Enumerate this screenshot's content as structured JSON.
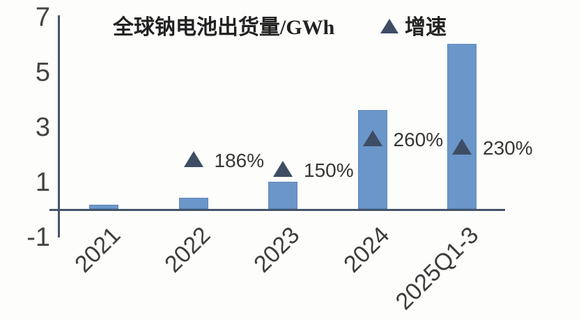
{
  "legend": {
    "items": [
      {
        "label": "全球钠电池出货量/GWh",
        "marker": "square",
        "color": "#6b96c9"
      },
      {
        "label": "增速",
        "marker": "triangle",
        "color": "#3e4d63"
      }
    ]
  },
  "axes": {
    "y_tick_labels": [
      "7",
      "5",
      "3",
      "1",
      "-1"
    ],
    "x_tick_labels": [
      "2021",
      "2022",
      "2023",
      "2024",
      "2025Q1-3"
    ]
  },
  "colors": {
    "bar": "#6b96c9",
    "bar_border": "#5d89bd",
    "triangle": "#3e4d63",
    "axis_line": "#44546a"
  },
  "chart_data": {
    "type": "bar",
    "title": "",
    "categories": [
      "2021",
      "2022",
      "2023",
      "2024",
      "2025Q1-3"
    ],
    "series": [
      {
        "name": "全球钠电池出货量/GWh",
        "type": "bar",
        "unit": "GWh",
        "values": [
          0.15,
          0.4,
          1.0,
          3.6,
          6.0
        ]
      },
      {
        "name": "增速",
        "type": "scatter",
        "marker": "triangle",
        "growth_pct": [
          null,
          186,
          150,
          260,
          230
        ],
        "labels": [
          null,
          "186%",
          "150%",
          "260%",
          "230%"
        ],
        "plotted_values": [
          null,
          1.86,
          1.5,
          2.6,
          2.3
        ]
      }
    ],
    "ylim": [
      -1,
      7
    ],
    "yticks": [
      7,
      5,
      3,
      1,
      -1
    ],
    "grid": false,
    "legend_position": "top"
  }
}
